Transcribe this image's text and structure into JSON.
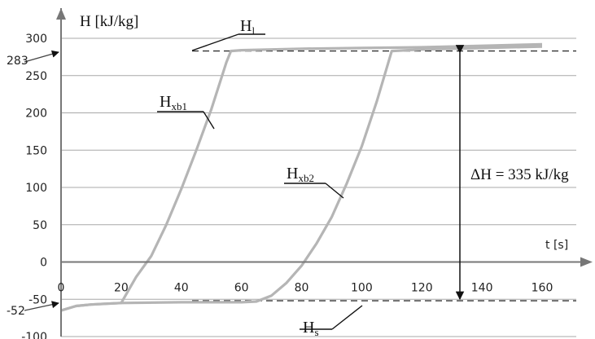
{
  "chart_data": {
    "type": "line",
    "ylabel": "H [kJ/kg]",
    "xlabel": "t [s]",
    "xlim": [
      0,
      160
    ],
    "ylim": [
      -100,
      300
    ],
    "x_ticks": [
      0,
      20,
      40,
      60,
      80,
      100,
      120,
      140,
      160
    ],
    "y_ticks": [
      300,
      250,
      200,
      150,
      100,
      50,
      0,
      -50,
      -100
    ],
    "grid": true,
    "reference_lines": {
      "upper": {
        "value": 283,
        "value_label": "283",
        "name": "H",
        "subscript": "l"
      },
      "lower": {
        "value": -52,
        "value_label": "-52",
        "name": "H",
        "subscript": "s"
      }
    },
    "delta_annotation": "ΔH = 335 kJ/kg",
    "series": [
      {
        "name": "H",
        "subscript": "xb1",
        "x": [
          0,
          5,
          10,
          15,
          20,
          25,
          30,
          35,
          40,
          45,
          50,
          55,
          56.5,
          60,
          80,
          100,
          120,
          140,
          160
        ],
        "y": [
          -65,
          -59,
          -57,
          -56,
          -55,
          -20,
          8,
          50,
          98,
          150,
          205,
          268,
          283,
          284,
          286,
          287,
          288,
          290,
          292
        ]
      },
      {
        "name": "H",
        "subscript": "xb2",
        "x": [
          0,
          5,
          10,
          20,
          40,
          60,
          65,
          70,
          75,
          80,
          85,
          90,
          95,
          100,
          105,
          110,
          120,
          140,
          160
        ],
        "y": [
          -65,
          -59,
          -57,
          -55,
          -54,
          -54,
          -53,
          -45,
          -28,
          -5,
          25,
          60,
          105,
          155,
          215,
          283,
          285,
          287,
          289
        ]
      }
    ]
  }
}
